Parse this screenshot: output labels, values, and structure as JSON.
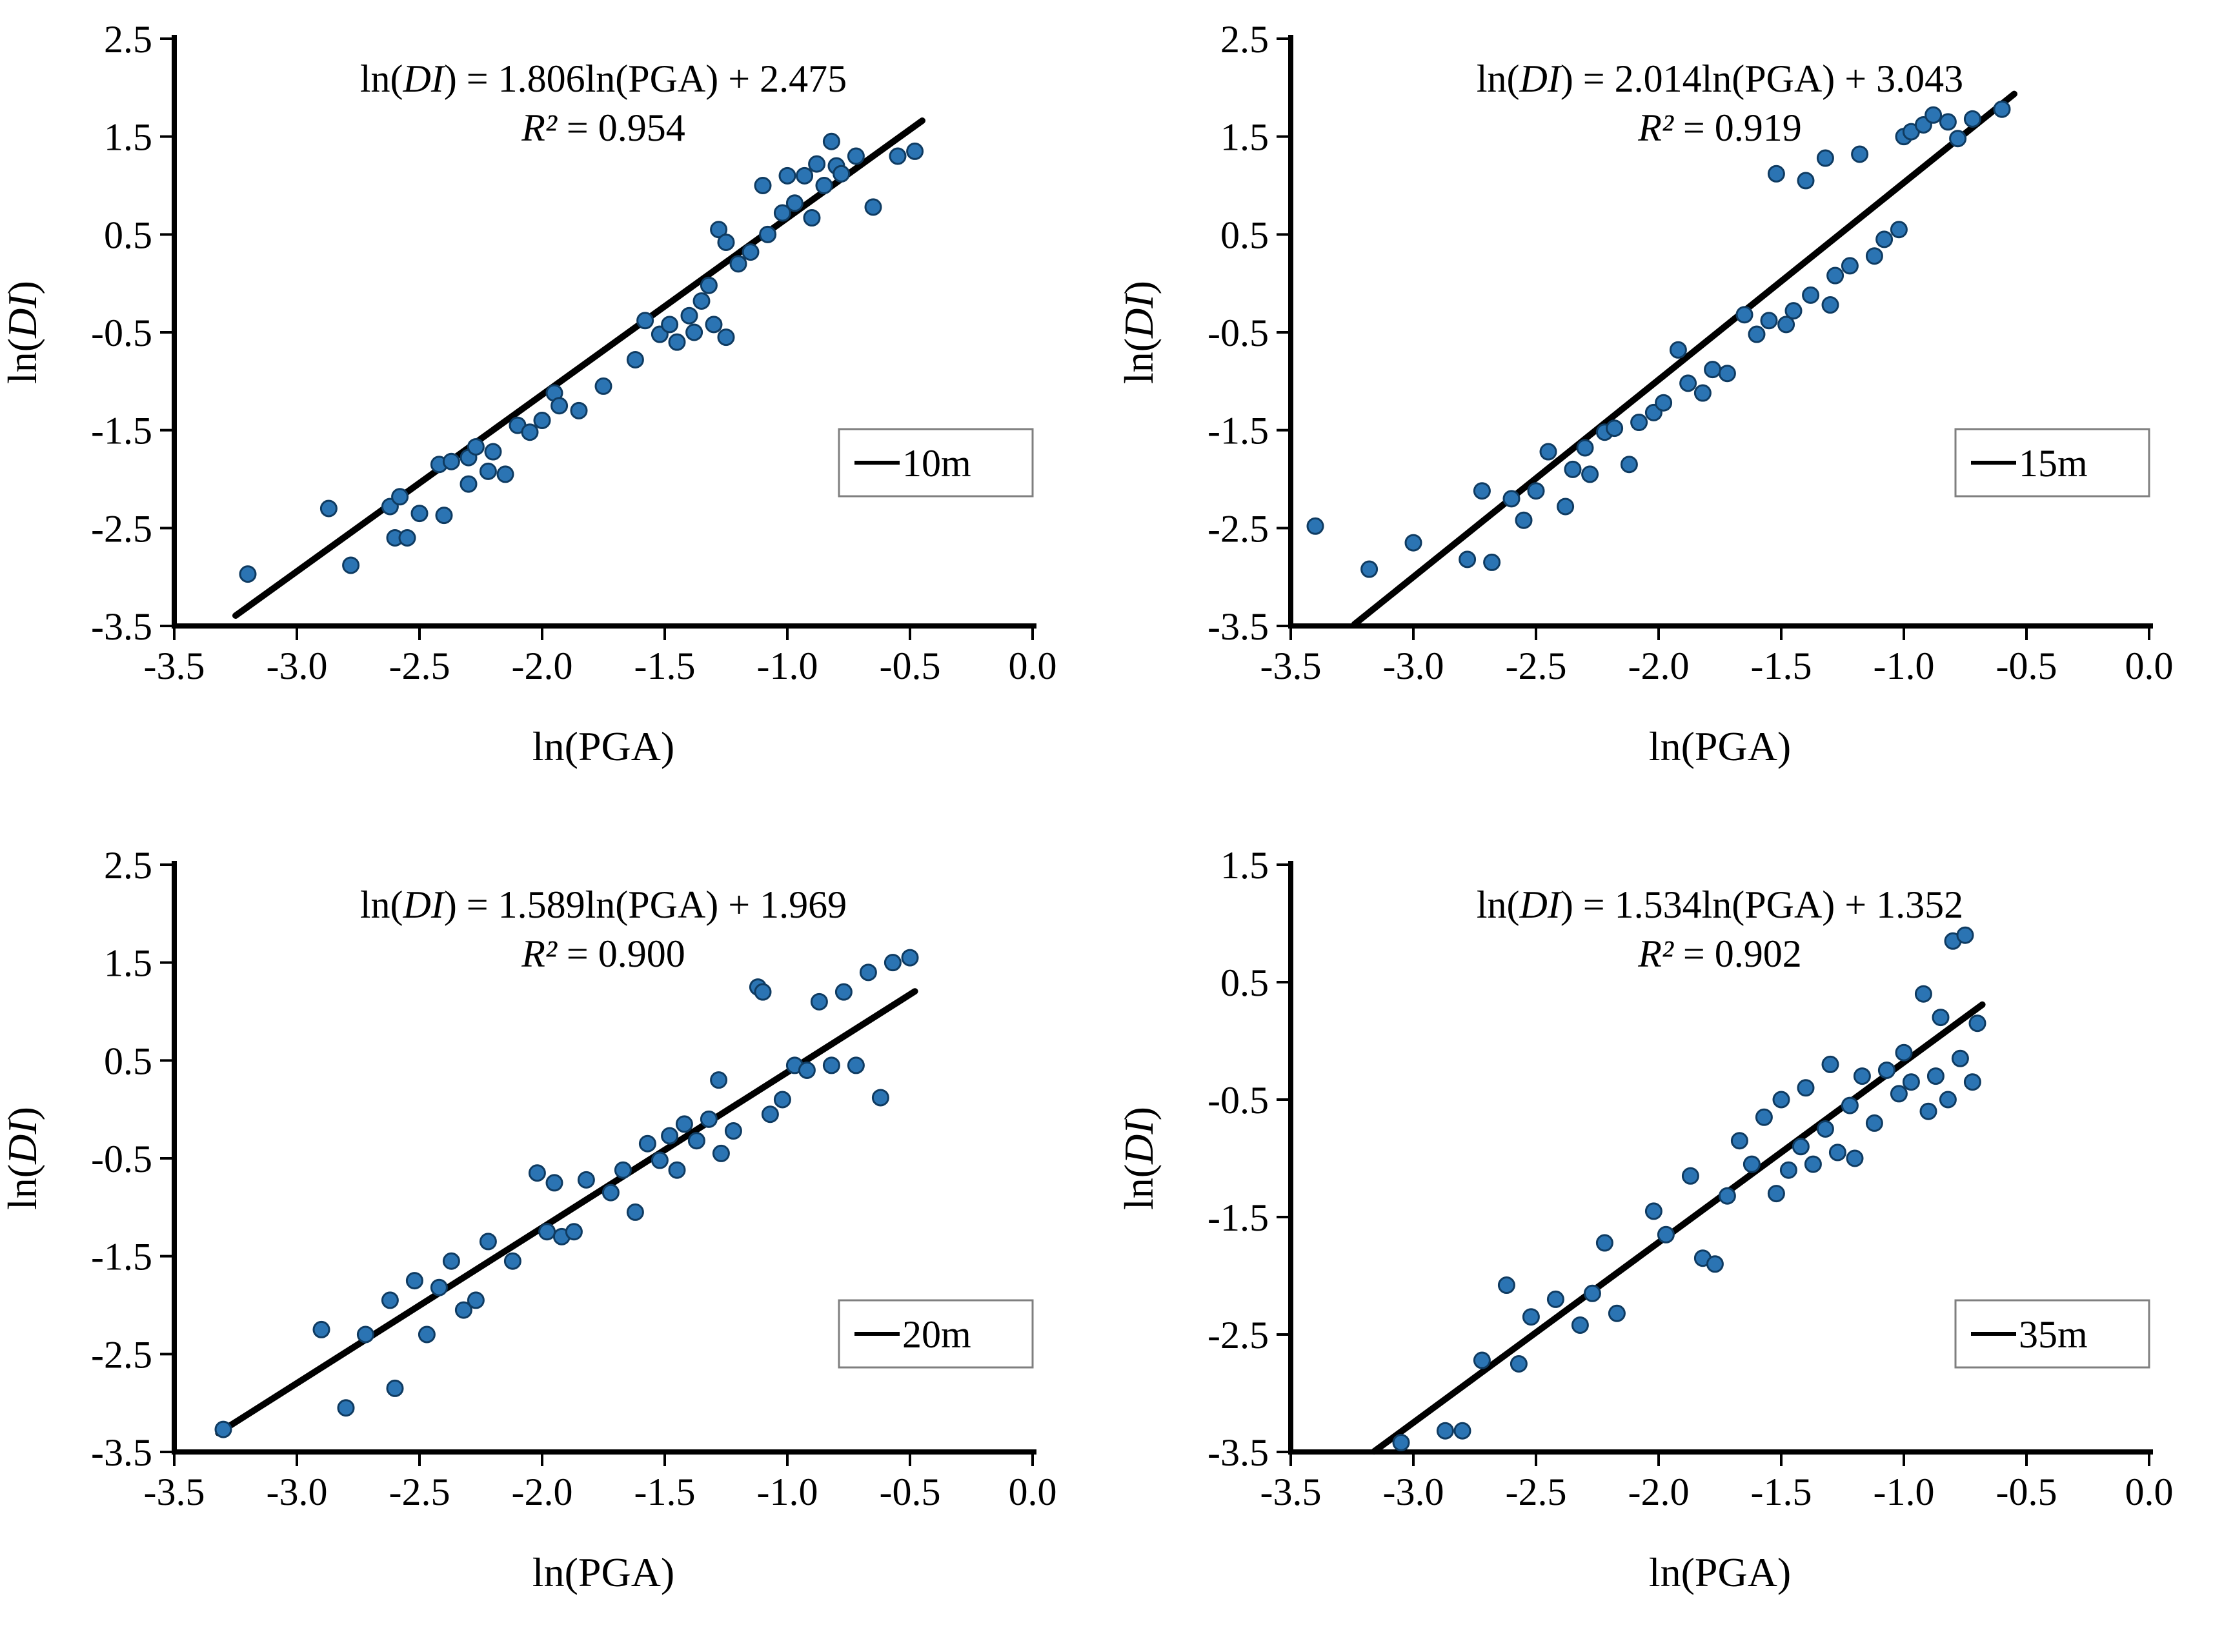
{
  "style": {
    "background": "#ffffff",
    "point_fill": "#2B74B3",
    "point_stroke": "#0F3B61",
    "line_color": "#000000",
    "axis_color": "#000000",
    "legend_border": "#7f7f7f",
    "text_color": "#000000"
  },
  "chart_data": [
    {
      "type": "scatter",
      "legend_label": "10m",
      "equation_text": "ln(DI) = 1.806ln(PGA) + 2.475",
      "r2_text": "R² = 0.954",
      "equation_segments": [
        {
          "t": "ln(",
          "i": false
        },
        {
          "t": "DI",
          "i": true
        },
        {
          "t": ") = 1.806ln(PGA) + 2.475",
          "i": false
        }
      ],
      "r2_segments": [
        {
          "t": "R²",
          "i": true
        },
        {
          "t": " = 0.954",
          "i": false
        }
      ],
      "slope": 1.806,
      "intercept": 2.475,
      "r2": 0.954,
      "xlabel": "ln(PGA)",
      "ylabel_segments": [
        {
          "t": "ln(",
          "i": false
        },
        {
          "t": "DI",
          "i": true
        },
        {
          "t": ")",
          "i": false
        }
      ],
      "xlim": [
        -3.5,
        0.0
      ],
      "ylim": [
        -3.5,
        2.5
      ],
      "xticks": [
        "-3.5",
        "-3.0",
        "-2.5",
        "-2.0",
        "-1.5",
        "-1.0",
        "-0.5",
        "0.0"
      ],
      "yticks": [
        "2.5",
        "1.5",
        "0.5",
        "-0.5",
        "-1.5",
        "-2.5",
        "-3.5"
      ],
      "trendline": {
        "x_start": -3.25,
        "x_end": -0.45
      },
      "points": [
        [
          -3.2,
          -2.97
        ],
        [
          -2.87,
          -2.3
        ],
        [
          -2.78,
          -2.88
        ],
        [
          -2.62,
          -2.28
        ],
        [
          -2.6,
          -2.6
        ],
        [
          -2.58,
          -2.18
        ],
        [
          -2.55,
          -2.6
        ],
        [
          -2.5,
          -2.35
        ],
        [
          -2.42,
          -1.85
        ],
        [
          -2.4,
          -2.37
        ],
        [
          -2.37,
          -1.82
        ],
        [
          -2.3,
          -1.78
        ],
        [
          -2.3,
          -2.05
        ],
        [
          -2.27,
          -1.67
        ],
        [
          -2.22,
          -1.92
        ],
        [
          -2.2,
          -1.72
        ],
        [
          -2.15,
          -1.95
        ],
        [
          -2.1,
          -1.45
        ],
        [
          -2.05,
          -1.52
        ],
        [
          -2.0,
          -1.4
        ],
        [
          -1.95,
          -1.12
        ],
        [
          -1.93,
          -1.25
        ],
        [
          -1.85,
          -1.3
        ],
        [
          -1.75,
          -1.05
        ],
        [
          -1.62,
          -0.78
        ],
        [
          -1.58,
          -0.38
        ],
        [
          -1.52,
          -0.52
        ],
        [
          -1.48,
          -0.42
        ],
        [
          -1.45,
          -0.6
        ],
        [
          -1.4,
          -0.33
        ],
        [
          -1.38,
          -0.5
        ],
        [
          -1.35,
          -0.18
        ],
        [
          -1.32,
          -0.02
        ],
        [
          -1.3,
          -0.42
        ],
        [
          -1.28,
          0.55
        ],
        [
          -1.25,
          0.42
        ],
        [
          -1.25,
          -0.55
        ],
        [
          -1.2,
          0.2
        ],
        [
          -1.15,
          0.32
        ],
        [
          -1.1,
          1.0
        ],
        [
          -1.08,
          0.5
        ],
        [
          -1.02,
          0.72
        ],
        [
          -1.0,
          1.1
        ],
        [
          -0.97,
          0.82
        ],
        [
          -0.93,
          1.1
        ],
        [
          -0.9,
          0.67
        ],
        [
          -0.88,
          1.22
        ],
        [
          -0.85,
          1.0
        ],
        [
          -0.82,
          1.45
        ],
        [
          -0.8,
          1.2
        ],
        [
          -0.78,
          1.12
        ],
        [
          -0.72,
          1.3
        ],
        [
          -0.65,
          0.78
        ],
        [
          -0.55,
          1.3
        ],
        [
          -0.48,
          1.35
        ]
      ]
    },
    {
      "type": "scatter",
      "legend_label": "15m",
      "equation_text": "ln(DI) = 2.014ln(PGA) + 3.043",
      "r2_text": "R² = 0.919",
      "equation_segments": [
        {
          "t": "ln(",
          "i": false
        },
        {
          "t": "DI",
          "i": true
        },
        {
          "t": ") = 2.014ln(PGA) + 3.043",
          "i": false
        }
      ],
      "r2_segments": [
        {
          "t": "R²",
          "i": true
        },
        {
          "t": " = 0.919",
          "i": false
        }
      ],
      "slope": 2.014,
      "intercept": 3.043,
      "r2": 0.919,
      "xlabel": "ln(PGA)",
      "ylabel_segments": [
        {
          "t": "ln(",
          "i": false
        },
        {
          "t": "DI",
          "i": true
        },
        {
          "t": ")",
          "i": false
        }
      ],
      "xlim": [
        -3.5,
        0.0
      ],
      "ylim": [
        -3.5,
        2.5
      ],
      "xticks": [
        "-3.5",
        "-3.0",
        "-2.5",
        "-2.0",
        "-1.5",
        "-1.0",
        "-0.5",
        "0.0"
      ],
      "yticks": [
        "2.5",
        "1.5",
        "0.5",
        "-0.5",
        "-1.5",
        "-2.5",
        "-3.5"
      ],
      "trendline": {
        "x_start": -3.24,
        "x_end": -0.55
      },
      "points": [
        [
          -3.4,
          -2.48
        ],
        [
          -3.18,
          -2.92
        ],
        [
          -3.0,
          -2.65
        ],
        [
          -2.78,
          -2.82
        ],
        [
          -2.72,
          -2.12
        ],
        [
          -2.68,
          -2.85
        ],
        [
          -2.6,
          -2.2
        ],
        [
          -2.55,
          -2.42
        ],
        [
          -2.5,
          -2.12
        ],
        [
          -2.45,
          -1.72
        ],
        [
          -2.38,
          -2.28
        ],
        [
          -2.35,
          -1.9
        ],
        [
          -2.3,
          -1.68
        ],
        [
          -2.28,
          -1.95
        ],
        [
          -2.22,
          -1.52
        ],
        [
          -2.18,
          -1.48
        ],
        [
          -2.12,
          -1.85
        ],
        [
          -2.08,
          -1.42
        ],
        [
          -2.02,
          -1.32
        ],
        [
          -1.98,
          -1.22
        ],
        [
          -1.92,
          -0.68
        ],
        [
          -1.88,
          -1.02
        ],
        [
          -1.82,
          -1.12
        ],
        [
          -1.78,
          -0.88
        ],
        [
          -1.72,
          -0.92
        ],
        [
          -1.65,
          -0.32
        ],
        [
          -1.6,
          -0.52
        ],
        [
          -1.55,
          -0.38
        ],
        [
          -1.52,
          1.12
        ],
        [
          -1.48,
          -0.42
        ],
        [
          -1.45,
          -0.28
        ],
        [
          -1.4,
          1.05
        ],
        [
          -1.38,
          -0.12
        ],
        [
          -1.32,
          1.28
        ],
        [
          -1.3,
          -0.22
        ],
        [
          -1.28,
          0.08
        ],
        [
          -1.22,
          0.18
        ],
        [
          -1.18,
          1.32
        ],
        [
          -1.12,
          0.28
        ],
        [
          -1.08,
          0.45
        ],
        [
          -1.02,
          0.55
        ],
        [
          -1.0,
          1.5
        ],
        [
          -0.97,
          1.55
        ],
        [
          -0.92,
          1.62
        ],
        [
          -0.88,
          1.72
        ],
        [
          -0.82,
          1.65
        ],
        [
          -0.78,
          1.48
        ],
        [
          -0.72,
          1.68
        ],
        [
          -0.6,
          1.78
        ]
      ]
    },
    {
      "type": "scatter",
      "legend_label": "20m",
      "equation_text": "ln(DI) = 1.589ln(PGA) + 1.969",
      "r2_text": "R² = 0.900",
      "equation_segments": [
        {
          "t": "ln(",
          "i": false
        },
        {
          "t": "DI",
          "i": true
        },
        {
          "t": ") = 1.589ln(PGA) + 1.969",
          "i": false
        }
      ],
      "r2_segments": [
        {
          "t": "R²",
          "i": true
        },
        {
          "t": " = 0.900",
          "i": false
        }
      ],
      "slope": 1.589,
      "intercept": 1.969,
      "r2": 0.9,
      "xlabel": "ln(PGA)",
      "ylabel_segments": [
        {
          "t": "ln(",
          "i": false
        },
        {
          "t": "DI",
          "i": true
        },
        {
          "t": ")",
          "i": false
        }
      ],
      "xlim": [
        -3.5,
        0.0
      ],
      "ylim": [
        -3.5,
        2.5
      ],
      "xticks": [
        "-3.5",
        "-3.0",
        "-2.5",
        "-2.0",
        "-1.5",
        "-1.0",
        "-0.5",
        "0.0"
      ],
      "yticks": [
        "2.5",
        "1.5",
        "0.5",
        "-0.5",
        "-1.5",
        "-2.5",
        "-3.5"
      ],
      "trendline": {
        "x_start": -3.32,
        "x_end": -0.48
      },
      "points": [
        [
          -3.3,
          -3.27
        ],
        [
          -2.9,
          -2.25
        ],
        [
          -2.8,
          -3.05
        ],
        [
          -2.72,
          -2.3
        ],
        [
          -2.62,
          -1.95
        ],
        [
          -2.6,
          -2.85
        ],
        [
          -2.52,
          -1.75
        ],
        [
          -2.47,
          -2.3
        ],
        [
          -2.42,
          -1.82
        ],
        [
          -2.37,
          -1.55
        ],
        [
          -2.32,
          -2.05
        ],
        [
          -2.27,
          -1.95
        ],
        [
          -2.22,
          -1.35
        ],
        [
          -2.12,
          -1.55
        ],
        [
          -2.02,
          -0.65
        ],
        [
          -1.98,
          -1.25
        ],
        [
          -1.95,
          -0.75
        ],
        [
          -1.92,
          -1.3
        ],
        [
          -1.87,
          -1.25
        ],
        [
          -1.82,
          -0.72
        ],
        [
          -1.72,
          -0.85
        ],
        [
          -1.67,
          -0.62
        ],
        [
          -1.62,
          -1.05
        ],
        [
          -1.57,
          -0.35
        ],
        [
          -1.52,
          -0.52
        ],
        [
          -1.48,
          -0.27
        ],
        [
          -1.45,
          -0.62
        ],
        [
          -1.42,
          -0.15
        ],
        [
          -1.37,
          -0.32
        ],
        [
          -1.32,
          -0.1
        ],
        [
          -1.28,
          0.3
        ],
        [
          -1.27,
          -0.45
        ],
        [
          -1.22,
          -0.22
        ],
        [
          -1.12,
          1.25
        ],
        [
          -1.1,
          1.2
        ],
        [
          -1.07,
          -0.05
        ],
        [
          -1.02,
          0.1
        ],
        [
          -0.97,
          0.45
        ],
        [
          -0.92,
          0.4
        ],
        [
          -0.87,
          1.1
        ],
        [
          -0.82,
          0.45
        ],
        [
          -0.77,
          1.2
        ],
        [
          -0.72,
          0.45
        ],
        [
          -0.67,
          1.4
        ],
        [
          -0.62,
          0.12
        ],
        [
          -0.57,
          1.5
        ],
        [
          -0.5,
          1.55
        ]
      ]
    },
    {
      "type": "scatter",
      "legend_label": "35m",
      "equation_text": "ln(DI) = 1.534ln(PGA) + 1.352",
      "r2_text": "R² = 0.902",
      "equation_segments": [
        {
          "t": "ln(",
          "i": false
        },
        {
          "t": "DI",
          "i": true
        },
        {
          "t": ") = 1.534ln(PGA) + 1.352",
          "i": false
        }
      ],
      "r2_segments": [
        {
          "t": "R²",
          "i": true
        },
        {
          "t": " = 0.902",
          "i": false
        }
      ],
      "slope": 1.534,
      "intercept": 1.352,
      "r2": 0.902,
      "xlabel": "ln(PGA)",
      "ylabel_segments": [
        {
          "t": "ln(",
          "i": false
        },
        {
          "t": "DI",
          "i": true
        },
        {
          "t": ")",
          "i": false
        }
      ],
      "xlim": [
        -3.5,
        0.0
      ],
      "ylim": [
        -3.5,
        1.5
      ],
      "xticks": [
        "-3.5",
        "-3.0",
        "-2.5",
        "-2.0",
        "-1.5",
        "-1.0",
        "-0.5",
        "0.0"
      ],
      "yticks": [
        "1.5",
        "0.5",
        "-0.5",
        "-1.5",
        "-2.5",
        "-3.5"
      ],
      "trendline": {
        "x_start": -3.16,
        "x_end": -0.68
      },
      "points": [
        [
          -3.05,
          -3.42
        ],
        [
          -2.87,
          -3.32
        ],
        [
          -2.8,
          -3.32
        ],
        [
          -2.72,
          -2.72
        ],
        [
          -2.62,
          -2.08
        ],
        [
          -2.57,
          -2.75
        ],
        [
          -2.52,
          -2.35
        ],
        [
          -2.42,
          -2.2
        ],
        [
          -2.32,
          -2.42
        ],
        [
          -2.27,
          -2.15
        ],
        [
          -2.22,
          -1.72
        ],
        [
          -2.17,
          -2.32
        ],
        [
          -2.02,
          -1.45
        ],
        [
          -1.97,
          -1.65
        ],
        [
          -1.87,
          -1.15
        ],
        [
          -1.82,
          -1.85
        ],
        [
          -1.77,
          -1.9
        ],
        [
          -1.72,
          -1.32
        ],
        [
          -1.67,
          -0.85
        ],
        [
          -1.62,
          -1.05
        ],
        [
          -1.57,
          -0.65
        ],
        [
          -1.52,
          -1.3
        ],
        [
          -1.5,
          -0.5
        ],
        [
          -1.47,
          -1.1
        ],
        [
          -1.42,
          -0.9
        ],
        [
          -1.4,
          -0.4
        ],
        [
          -1.37,
          -1.05
        ],
        [
          -1.32,
          -0.75
        ],
        [
          -1.3,
          -0.2
        ],
        [
          -1.27,
          -0.95
        ],
        [
          -1.22,
          -0.55
        ],
        [
          -1.2,
          -1.0
        ],
        [
          -1.17,
          -0.3
        ],
        [
          -1.12,
          -0.7
        ],
        [
          -1.07,
          -0.25
        ],
        [
          -1.02,
          -0.45
        ],
        [
          -1.0,
          -0.1
        ],
        [
          -0.97,
          -0.35
        ],
        [
          -0.92,
          0.4
        ],
        [
          -0.9,
          -0.6
        ],
        [
          -0.87,
          -0.3
        ],
        [
          -0.85,
          0.2
        ],
        [
          -0.82,
          -0.5
        ],
        [
          -0.8,
          0.85
        ],
        [
          -0.77,
          -0.15
        ],
        [
          -0.75,
          0.9
        ],
        [
          -0.72,
          -0.35
        ],
        [
          -0.7,
          0.15
        ]
      ]
    }
  ]
}
